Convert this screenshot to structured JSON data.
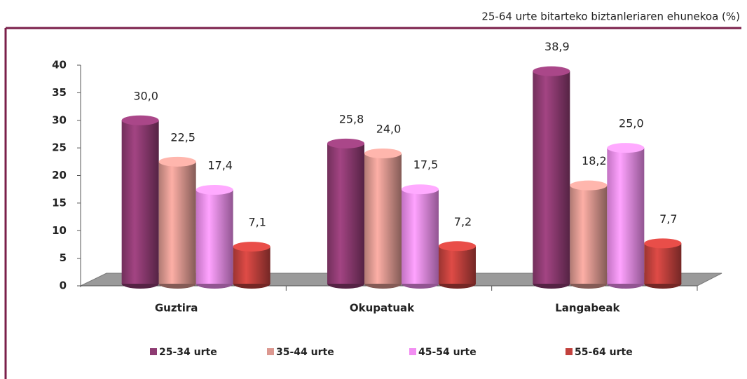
{
  "chart_data": {
    "type": "bar3d",
    "subtitle": "25-64 urte bitarteko biztanleriaren ehunekoa (%)",
    "categories": [
      "Guztira",
      "Okupatuak",
      "Langabeak"
    ],
    "series": [
      {
        "name": "25-34 urte",
        "color": "#8e3b72",
        "values": [
          30.0,
          25.8,
          38.9
        ],
        "value_labels": [
          "30,0",
          "25,8",
          "38,9"
        ]
      },
      {
        "name": "35-44 urte",
        "color": "#dc9890",
        "values": [
          22.5,
          24.0,
          18.2
        ],
        "value_labels": [
          "22,5",
          "24,0",
          "18,2"
        ]
      },
      {
        "name": "45-54 urte",
        "color": "#f28ef2",
        "values": [
          17.4,
          17.5,
          25.0
        ],
        "value_labels": [
          "17,4",
          "17,5",
          "25,0"
        ]
      },
      {
        "name": "55-64 urte",
        "color": "#c2413d",
        "values": [
          7.1,
          7.2,
          7.7
        ],
        "value_labels": [
          "7,1",
          "7,2",
          "7,7"
        ]
      }
    ],
    "ylim": [
      0,
      40
    ],
    "yticks": [
      0,
      5,
      10,
      15,
      20,
      25,
      30,
      35,
      40
    ],
    "legend": "bottom"
  }
}
